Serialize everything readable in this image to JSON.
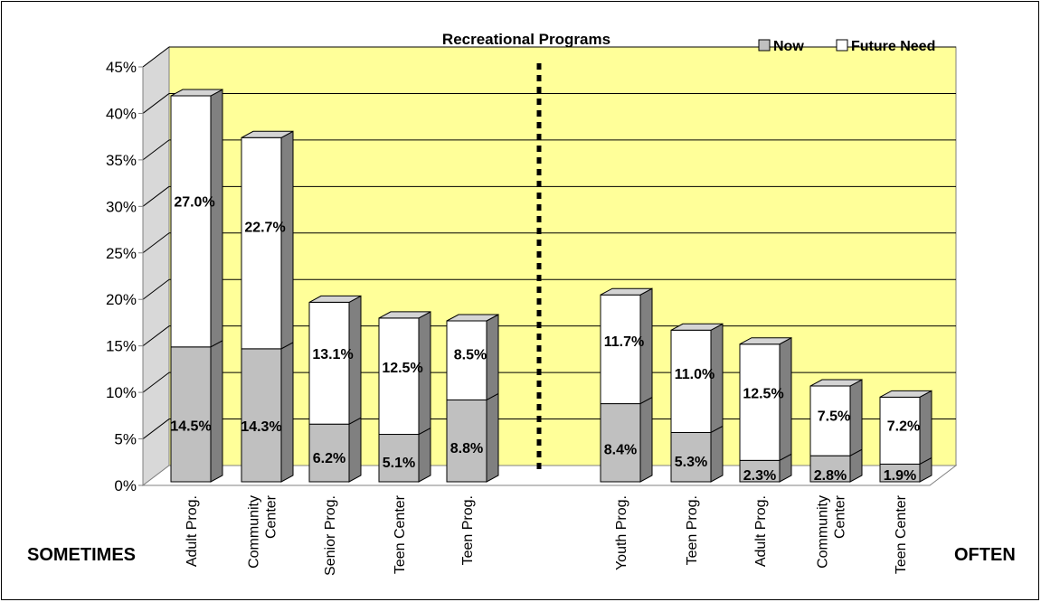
{
  "chart_data": {
    "type": "bar",
    "stacked": true,
    "title": "Recreational Programs",
    "categories": [
      "Adult Prog.",
      "Community\nCenter",
      "Senior Prog.",
      "Teen Center",
      "Teen Prog.",
      "Youth Prog.",
      "Teen Prog.",
      "Adult Prog.",
      "Community\nCenter",
      "Teen Center"
    ],
    "series": [
      {
        "name": "Now",
        "values": [
          14.5,
          14.3,
          6.2,
          5.1,
          8.8,
          8.4,
          5.3,
          2.3,
          2.8,
          1.9
        ],
        "labels": [
          "14.5%",
          "14.3%",
          "6.2%",
          "5.1%",
          "8.8%",
          "8.4%",
          "5.3%",
          "2.3%",
          "2.8%",
          "1.9%"
        ]
      },
      {
        "name": "Future Need",
        "values": [
          27.0,
          22.7,
          13.1,
          12.5,
          8.5,
          11.7,
          11.0,
          12.5,
          7.5,
          7.2
        ],
        "labels": [
          "27.0%",
          "22.7%",
          "13.1%",
          "12.5%",
          "8.5%",
          "11.7%",
          "11.0%",
          "12.5%",
          "7.5%",
          "7.2%"
        ]
      }
    ],
    "ylim": [
      0,
      45
    ],
    "yticks": [
      0,
      5,
      10,
      15,
      20,
      25,
      30,
      35,
      40,
      45
    ],
    "ytick_labels": [
      "0%",
      "5%",
      "10%",
      "15%",
      "20%",
      "25%",
      "30%",
      "35%",
      "40%",
      "45%"
    ],
    "group_labels": {
      "left": "SOMETIMES",
      "right": "OFTEN"
    },
    "legend_position": "top-right",
    "grid": true,
    "colors": {
      "now": "#c0c0c0",
      "future": "#ffffff",
      "plot_bg": "#ffff99",
      "side": "#808080",
      "top": "#d4d4d4"
    }
  }
}
